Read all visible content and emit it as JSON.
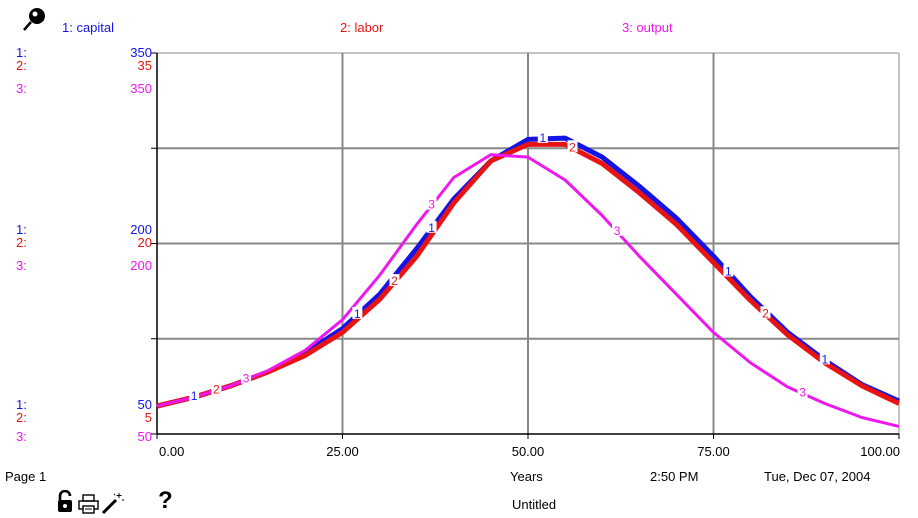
{
  "colors": {
    "capital": "#1414e6",
    "labor": "#e81414",
    "output": "#ee18ee",
    "grid": "#888888"
  },
  "header": {
    "pin_icon": "pushpin-icon",
    "legend": [
      "1: capital",
      "2: labor",
      "3: output"
    ]
  },
  "scales": {
    "top": {
      "idx": [
        "1:",
        "2:",
        "3:"
      ],
      "vals": [
        "350",
        "35",
        "350"
      ]
    },
    "middle": {
      "idx": [
        "1:",
        "2:",
        "3:"
      ],
      "vals": [
        "200",
        "20",
        "200"
      ]
    },
    "bottom": {
      "idx": [
        "1:",
        "2:",
        "3:"
      ],
      "vals": [
        "50",
        "5",
        "50"
      ]
    }
  },
  "footer": {
    "page": "Page 1",
    "time": "2:50 PM",
    "date": "Tue, Dec 07, 2004",
    "name": "Untitled",
    "icons": [
      "lock-icon",
      "print-icon",
      "magic-wand-icon",
      "help-icon"
    ],
    "help_glyph": "?"
  },
  "chart_data": {
    "type": "line",
    "xlabel": "Years",
    "xlim": [
      0,
      100
    ],
    "xticks": [
      "0.00",
      "25.00",
      "50.00",
      "75.00",
      "100.00"
    ],
    "ylim": [
      50,
      350
    ],
    "series": [
      {
        "name": "1: capital",
        "marker": "1",
        "scale": "50 – 350",
        "x": [
          0,
          5,
          10,
          15,
          20,
          25,
          30,
          35,
          40,
          45,
          50,
          55,
          60,
          65,
          70,
          75,
          80,
          85,
          90,
          95,
          100
        ],
        "y": [
          72,
          79,
          88,
          99,
          114,
          133,
          160,
          196,
          235,
          265,
          282,
          283,
          268,
          245,
          220,
          190,
          158,
          130,
          108,
          89,
          76
        ]
      },
      {
        "name": "2: labor",
        "marker": "2",
        "scale": "5 – 35",
        "x": [
          0,
          5,
          10,
          15,
          20,
          25,
          30,
          35,
          40,
          45,
          50,
          55,
          60,
          65,
          70,
          75,
          80,
          85,
          90,
          95,
          100
        ],
        "y": [
          7.2,
          7.9,
          8.8,
          9.9,
          11.2,
          13.0,
          15.6,
          19.0,
          23.2,
          26.5,
          27.8,
          27.8,
          26.3,
          24.0,
          21.5,
          18.5,
          15.5,
          12.8,
          10.6,
          8.8,
          7.4
        ]
      },
      {
        "name": "3: output",
        "marker": "3",
        "scale": "50 – 350",
        "x": [
          0,
          5,
          10,
          15,
          20,
          25,
          30,
          35,
          40,
          45,
          50,
          55,
          60,
          65,
          70,
          75,
          80,
          85,
          90,
          95,
          100
        ],
        "y": [
          72,
          79,
          88,
          100,
          116,
          140,
          175,
          215,
          252,
          270,
          268,
          250,
          222,
          190,
          160,
          130,
          106,
          87,
          74,
          63,
          56
        ]
      }
    ],
    "markers": {
      "1": [
        5,
        27,
        37,
        52,
        77,
        90
      ],
      "2": [
        8,
        32,
        56,
        82
      ],
      "3": [
        12,
        37,
        62,
        87
      ]
    }
  }
}
